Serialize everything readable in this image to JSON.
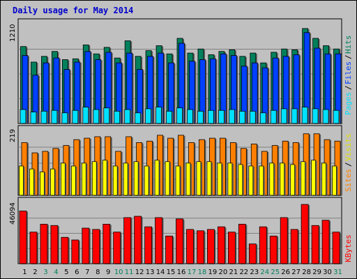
{
  "title": "Daily usage for May 2014",
  "colors": {
    "background": "#c0c0c0",
    "panel": "#c0c0c0",
    "title": "#0000cc",
    "hits": "#00805c",
    "files": "#0040ff",
    "pages": "#00e0ff",
    "visits": "#ffff00",
    "sites": "#ff8000",
    "kbytes": "#ff0000",
    "weekend_label": "#00805c",
    "weekday_label": "#000000",
    "grid": "#808080"
  },
  "chart_data": [
    {
      "type": "bar",
      "name": "hits-files-pages",
      "ymax_label": "1210",
      "ylim": [
        0,
        1210
      ],
      "legend": [
        "Pages",
        "Files",
        "Hits"
      ],
      "categories": [
        "1",
        "2",
        "3",
        "4",
        "5",
        "6",
        "7",
        "8",
        "9",
        "10",
        "11",
        "12",
        "13",
        "14",
        "15",
        "16",
        "17",
        "18",
        "19",
        "20",
        "21",
        "22",
        "23",
        "24",
        "25",
        "26",
        "27",
        "28",
        "29",
        "30",
        "31"
      ],
      "series": [
        {
          "name": "Hits",
          "values": [
            940,
            750,
            820,
            880,
            780,
            790,
            960,
            850,
            930,
            800,
            1010,
            820,
            890,
            950,
            850,
            1040,
            860,
            910,
            840,
            880,
            900,
            820,
            860,
            740,
            870,
            910,
            900,
            1160,
            1040,
            950,
            910
          ]
        },
        {
          "name": "Files",
          "values": [
            830,
            590,
            740,
            800,
            660,
            750,
            880,
            780,
            870,
            740,
            860,
            660,
            820,
            860,
            740,
            980,
            760,
            780,
            790,
            850,
            830,
            700,
            740,
            680,
            800,
            820,
            840,
            1110,
            920,
            850,
            850
          ]
        },
        {
          "name": "Pages",
          "values": [
            170,
            140,
            150,
            160,
            130,
            160,
            200,
            170,
            190,
            150,
            170,
            130,
            180,
            200,
            150,
            190,
            170,
            150,
            160,
            160,
            170,
            150,
            150,
            130,
            160,
            180,
            180,
            200,
            180,
            170,
            160
          ]
        }
      ]
    },
    {
      "type": "bar",
      "name": "sites-visits",
      "ymax_label": "219",
      "ylim": [
        0,
        219
      ],
      "legend": [
        "Sites",
        "Visits"
      ],
      "categories": [
        "1",
        "2",
        "3",
        "4",
        "5",
        "6",
        "7",
        "8",
        "9",
        "10",
        "11",
        "12",
        "13",
        "14",
        "15",
        "16",
        "17",
        "18",
        "19",
        "20",
        "21",
        "22",
        "23",
        "24",
        "25",
        "26",
        "27",
        "28",
        "29",
        "30",
        "31"
      ],
      "series": [
        {
          "name": "Sites",
          "values": [
            180,
            145,
            150,
            160,
            170,
            190,
            195,
            200,
            200,
            150,
            200,
            180,
            185,
            205,
            195,
            205,
            180,
            190,
            195,
            195,
            180,
            160,
            175,
            150,
            170,
            185,
            180,
            210,
            210,
            190,
            185
          ]
        },
        {
          "name": "Visits",
          "values": [
            100,
            90,
            80,
            90,
            110,
            100,
            110,
            115,
            120,
            100,
            110,
            115,
            100,
            120,
            115,
            100,
            110,
            115,
            115,
            110,
            110,
            105,
            100,
            100,
            110,
            110,
            105,
            115,
            120,
            110,
            100
          ]
        }
      ]
    },
    {
      "type": "bar",
      "name": "kbytes",
      "ymax_label": "46094",
      "ylim": [
        0,
        46094
      ],
      "legend": [
        "KBytes"
      ],
      "categories": [
        "1",
        "2",
        "3",
        "4",
        "5",
        "6",
        "7",
        "8",
        "9",
        "10",
        "11",
        "12",
        "13",
        "14",
        "15",
        "16",
        "17",
        "18",
        "19",
        "20",
        "21",
        "22",
        "23",
        "24",
        "25",
        "26",
        "27",
        "28",
        "29",
        "30",
        "31"
      ],
      "series": [
        {
          "name": "KBytes",
          "values": [
            40000,
            24000,
            30000,
            29000,
            20000,
            18000,
            27000,
            26000,
            30000,
            24000,
            35000,
            36000,
            28000,
            35000,
            21000,
            34000,
            26000,
            25000,
            26000,
            28000,
            24000,
            30000,
            15000,
            28000,
            21000,
            35000,
            26000,
            45000,
            29000,
            33000,
            24000
          ]
        }
      ]
    }
  ],
  "weekend_days": [
    3,
    4,
    10,
    11,
    17,
    18,
    24,
    25,
    31
  ]
}
